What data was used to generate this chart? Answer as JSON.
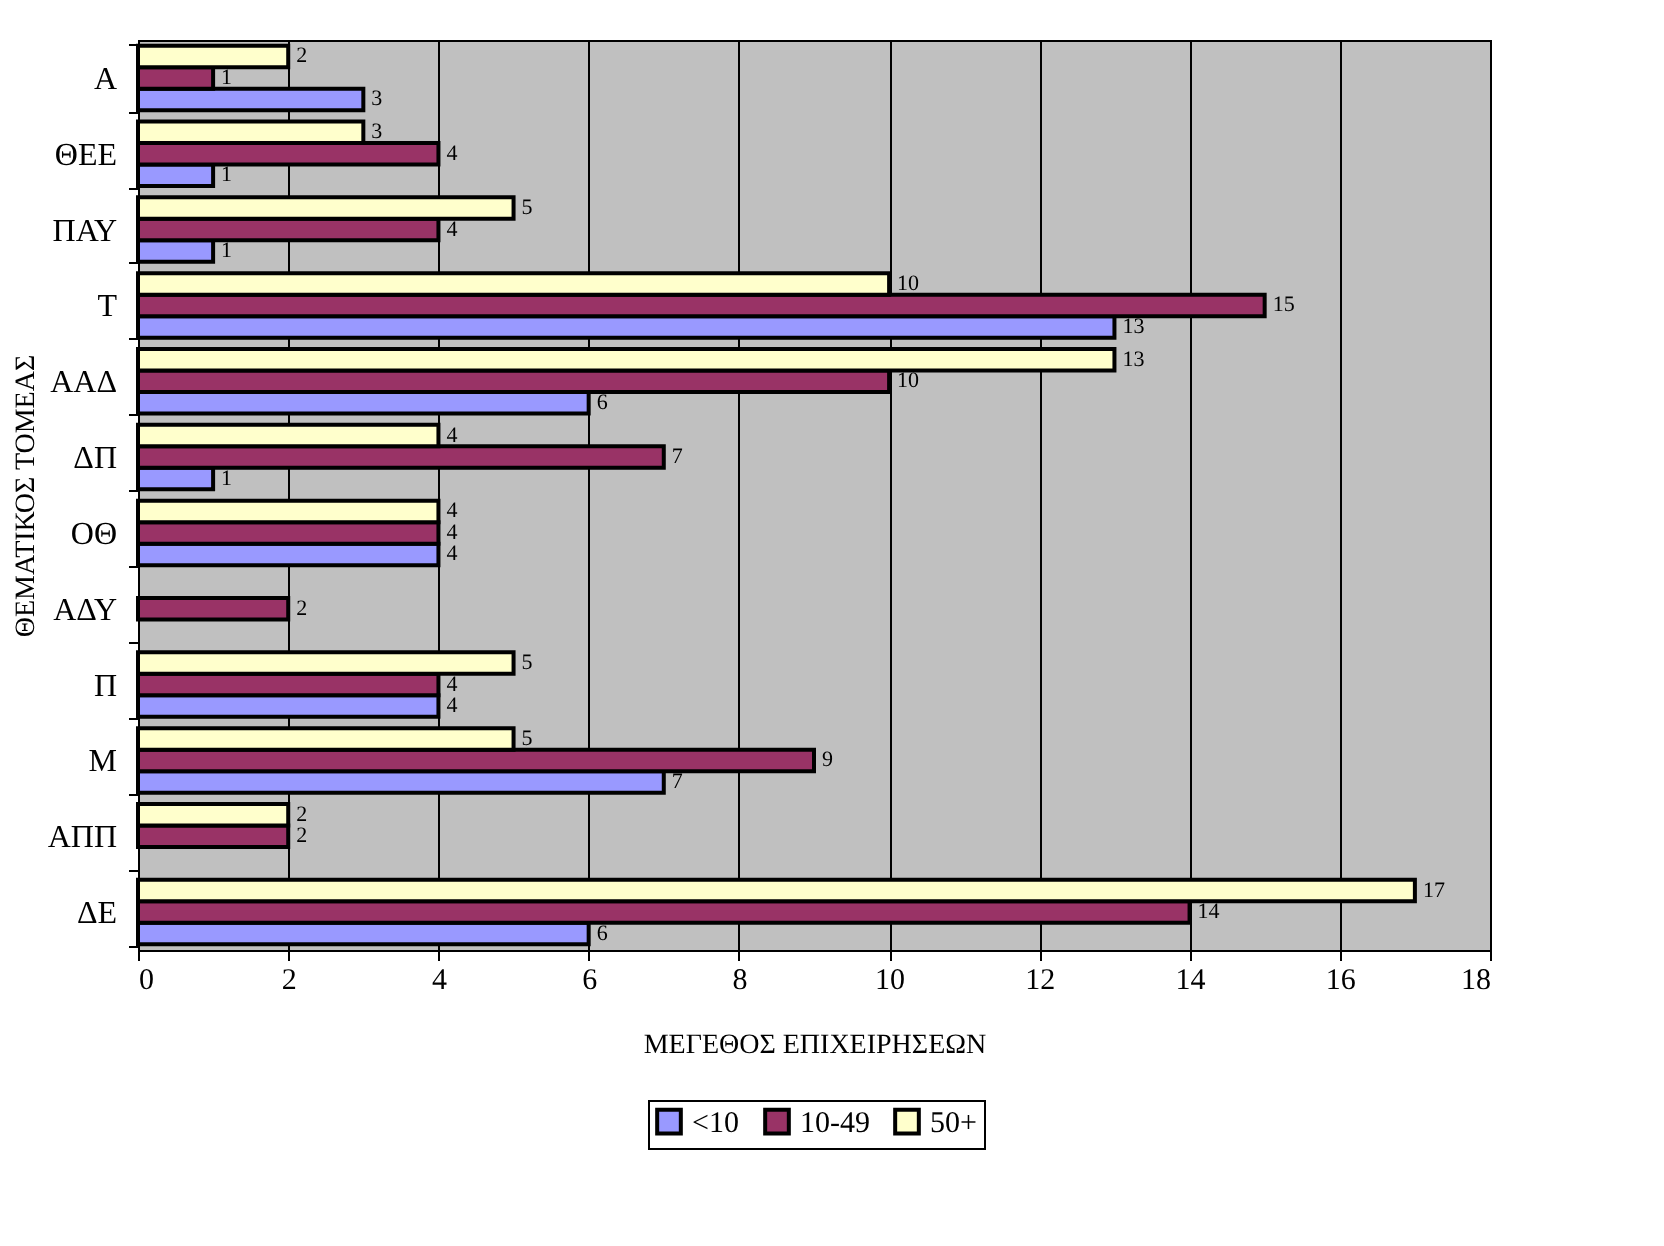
{
  "chart_data": {
    "type": "bar",
    "orientation": "horizontal",
    "categories": [
      "Α",
      "ΘΕΕ",
      "ΠΑΥ",
      "Τ",
      "ΑΑΔ",
      "ΔΠ",
      "ΟΘ",
      "ΑΔΥ",
      "Π",
      "Μ",
      "ΑΠΠ",
      "ΔΕ"
    ],
    "series": [
      {
        "name": "<10",
        "color": "#9999ff",
        "values": [
          3,
          1,
          1,
          13,
          6,
          1,
          4,
          null,
          4,
          7,
          null,
          6
        ]
      },
      {
        "name": "10-49",
        "color": "#993366",
        "values": [
          1,
          4,
          4,
          15,
          10,
          7,
          4,
          2,
          4,
          9,
          2,
          14
        ]
      },
      {
        "name": "50+",
        "color": "#ffffcc",
        "values": [
          2,
          3,
          5,
          10,
          13,
          4,
          4,
          null,
          5,
          5,
          2,
          17
        ]
      }
    ],
    "xlabel": "ΜΕΓΕΘΟΣ ΕΠΙΧΕΙΡΗΣΕΩΝ",
    "ylabel": "ΘΕΜΑΤΙΚΟΣ ΤΟΜΕΑΣ",
    "xlim": [
      0,
      18
    ],
    "xticks": [
      0,
      2,
      4,
      6,
      8,
      10,
      12,
      14,
      16,
      18
    ],
    "grid": "x",
    "legend": "bottom",
    "data_labels": true
  }
}
